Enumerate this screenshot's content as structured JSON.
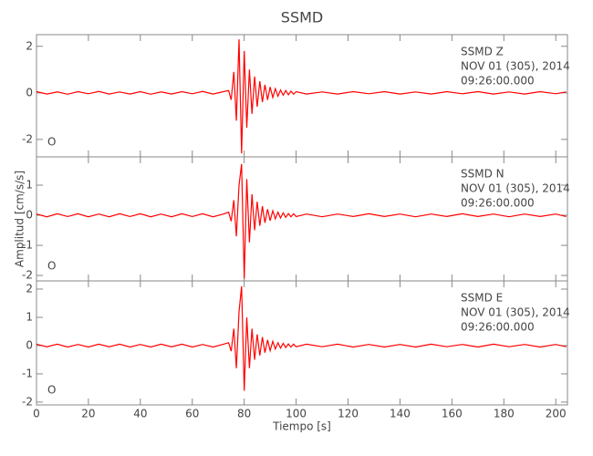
{
  "title": "SSMD",
  "xlabel": "Tiempo [s]",
  "ylabel": "Amplitud [cm/s/s]",
  "chart_data": [
    {
      "type": "line",
      "station": "SSMD  Z",
      "date": "NOV 01 (305), 2014",
      "time": "09:26:00.000",
      "marker": "O",
      "color": "#ff0000",
      "xlim": [
        0,
        204.5
      ],
      "xticks": [
        0,
        20,
        40,
        60,
        80,
        100,
        120,
        140,
        160,
        180,
        200
      ],
      "ylim": [
        -2.75,
        2.5
      ],
      "yticks": [
        -2,
        0,
        2
      ],
      "x": [
        0,
        4,
        8,
        12,
        16,
        20,
        24,
        28,
        32,
        36,
        40,
        44,
        48,
        52,
        56,
        60,
        64,
        68,
        72,
        74,
        75,
        76,
        77,
        78,
        79,
        80,
        81,
        82,
        83,
        84,
        85,
        86,
        87,
        88,
        89,
        90,
        91,
        92,
        93,
        94,
        95,
        96,
        97,
        98,
        99,
        100,
        104,
        110,
        116,
        122,
        128,
        134,
        140,
        146,
        152,
        158,
        164,
        170,
        176,
        182,
        188,
        194,
        200,
        204
      ],
      "values": [
        0.05,
        -0.05,
        0.04,
        -0.06,
        0.05,
        -0.04,
        0.06,
        -0.05,
        0.04,
        -0.05,
        0.05,
        -0.06,
        0.04,
        -0.05,
        0.05,
        -0.04,
        0.06,
        -0.05,
        0.05,
        0.1,
        -0.3,
        0.9,
        -1.2,
        2.3,
        -2.6,
        1.8,
        -1.5,
        1.0,
        -0.9,
        0.7,
        -0.6,
        0.5,
        -0.4,
        0.35,
        -0.3,
        0.25,
        -0.2,
        0.18,
        -0.15,
        0.12,
        -0.1,
        0.1,
        -0.08,
        0.07,
        -0.06,
        0.05,
        -0.05,
        0.04,
        -0.05,
        0.05,
        -0.04,
        0.05,
        -0.05,
        0.04,
        -0.05,
        0.05,
        -0.04,
        0.05,
        -0.05,
        0.04,
        -0.05,
        0.05,
        -0.04,
        0.04
      ]
    },
    {
      "type": "line",
      "station": "SSMD   N",
      "date": "NOV 01 (305), 2014",
      "time": "09:26:00.000",
      "marker": "O",
      "color": "#ff0000",
      "xlim": [
        0,
        204.5
      ],
      "xticks": [
        0,
        20,
        40,
        60,
        80,
        100,
        120,
        140,
        160,
        180,
        200
      ],
      "ylim": [
        -2.18,
        1.94
      ],
      "yticks": [
        -2,
        -1,
        0,
        1
      ],
      "x": [
        0,
        4,
        8,
        12,
        16,
        20,
        24,
        28,
        32,
        36,
        40,
        44,
        48,
        52,
        56,
        60,
        64,
        68,
        72,
        74,
        75,
        76,
        77,
        78,
        79,
        80,
        81,
        82,
        83,
        84,
        85,
        86,
        87,
        88,
        89,
        90,
        91,
        92,
        93,
        94,
        95,
        96,
        97,
        98,
        99,
        100,
        104,
        110,
        116,
        122,
        128,
        134,
        140,
        146,
        152,
        158,
        164,
        170,
        176,
        182,
        188,
        194,
        200,
        204
      ],
      "values": [
        0.04,
        -0.05,
        0.05,
        -0.04,
        0.05,
        -0.05,
        0.04,
        -0.05,
        0.05,
        -0.04,
        0.05,
        -0.05,
        0.04,
        -0.05,
        0.05,
        -0.04,
        0.05,
        -0.05,
        0.04,
        0.1,
        -0.2,
        0.5,
        -0.7,
        1.0,
        1.7,
        -2.1,
        1.2,
        -0.9,
        0.7,
        -0.5,
        0.45,
        -0.35,
        0.3,
        -0.25,
        0.2,
        -0.18,
        0.15,
        -0.12,
        0.1,
        -0.09,
        0.08,
        -0.07,
        0.06,
        -0.05,
        0.05,
        -0.04,
        0.04,
        -0.05,
        0.04,
        -0.04,
        0.05,
        -0.04,
        0.04,
        -0.05,
        0.04,
        -0.04,
        0.05,
        -0.04,
        0.04,
        -0.05,
        0.04,
        -0.04,
        0.04,
        -0.04
      ]
    },
    {
      "type": "line",
      "station": "SSMD   E",
      "date": "NOV 01 (305), 2014",
      "time": "09:26:00.000",
      "marker": "O",
      "color": "#ff0000",
      "xlim": [
        0,
        204.5
      ],
      "xticks": [
        0,
        20,
        40,
        60,
        80,
        100,
        120,
        140,
        160,
        180,
        200
      ],
      "ylim": [
        -2.1,
        2.29
      ],
      "yticks": [
        -2,
        -1,
        0,
        1,
        2
      ],
      "x": [
        0,
        4,
        8,
        12,
        16,
        20,
        24,
        28,
        32,
        36,
        40,
        44,
        48,
        52,
        56,
        60,
        64,
        68,
        72,
        74,
        75,
        76,
        77,
        78,
        79,
        80,
        81,
        82,
        83,
        84,
        85,
        86,
        87,
        88,
        89,
        90,
        91,
        92,
        93,
        94,
        95,
        96,
        97,
        98,
        99,
        100,
        104,
        110,
        116,
        122,
        128,
        134,
        140,
        146,
        152,
        158,
        164,
        170,
        176,
        182,
        188,
        194,
        200,
        204
      ],
      "values": [
        0.05,
        -0.04,
        0.05,
        -0.05,
        0.04,
        -0.05,
        0.05,
        -0.04,
        0.05,
        -0.05,
        0.04,
        -0.05,
        0.05,
        -0.04,
        0.05,
        -0.05,
        0.04,
        -0.05,
        0.05,
        0.1,
        -0.2,
        0.6,
        -0.8,
        1.2,
        2.1,
        -1.6,
        1.0,
        -0.8,
        0.6,
        -0.5,
        0.4,
        -0.35,
        0.3,
        -0.25,
        0.2,
        -0.18,
        0.15,
        -0.12,
        0.1,
        -0.09,
        0.08,
        -0.07,
        0.06,
        -0.05,
        0.05,
        -0.04,
        0.05,
        -0.04,
        0.05,
        -0.05,
        0.04,
        -0.05,
        0.04,
        -0.05,
        0.05,
        -0.04,
        0.04,
        -0.05,
        0.05,
        -0.04,
        0.04,
        -0.05,
        0.04,
        -0.04
      ]
    }
  ]
}
